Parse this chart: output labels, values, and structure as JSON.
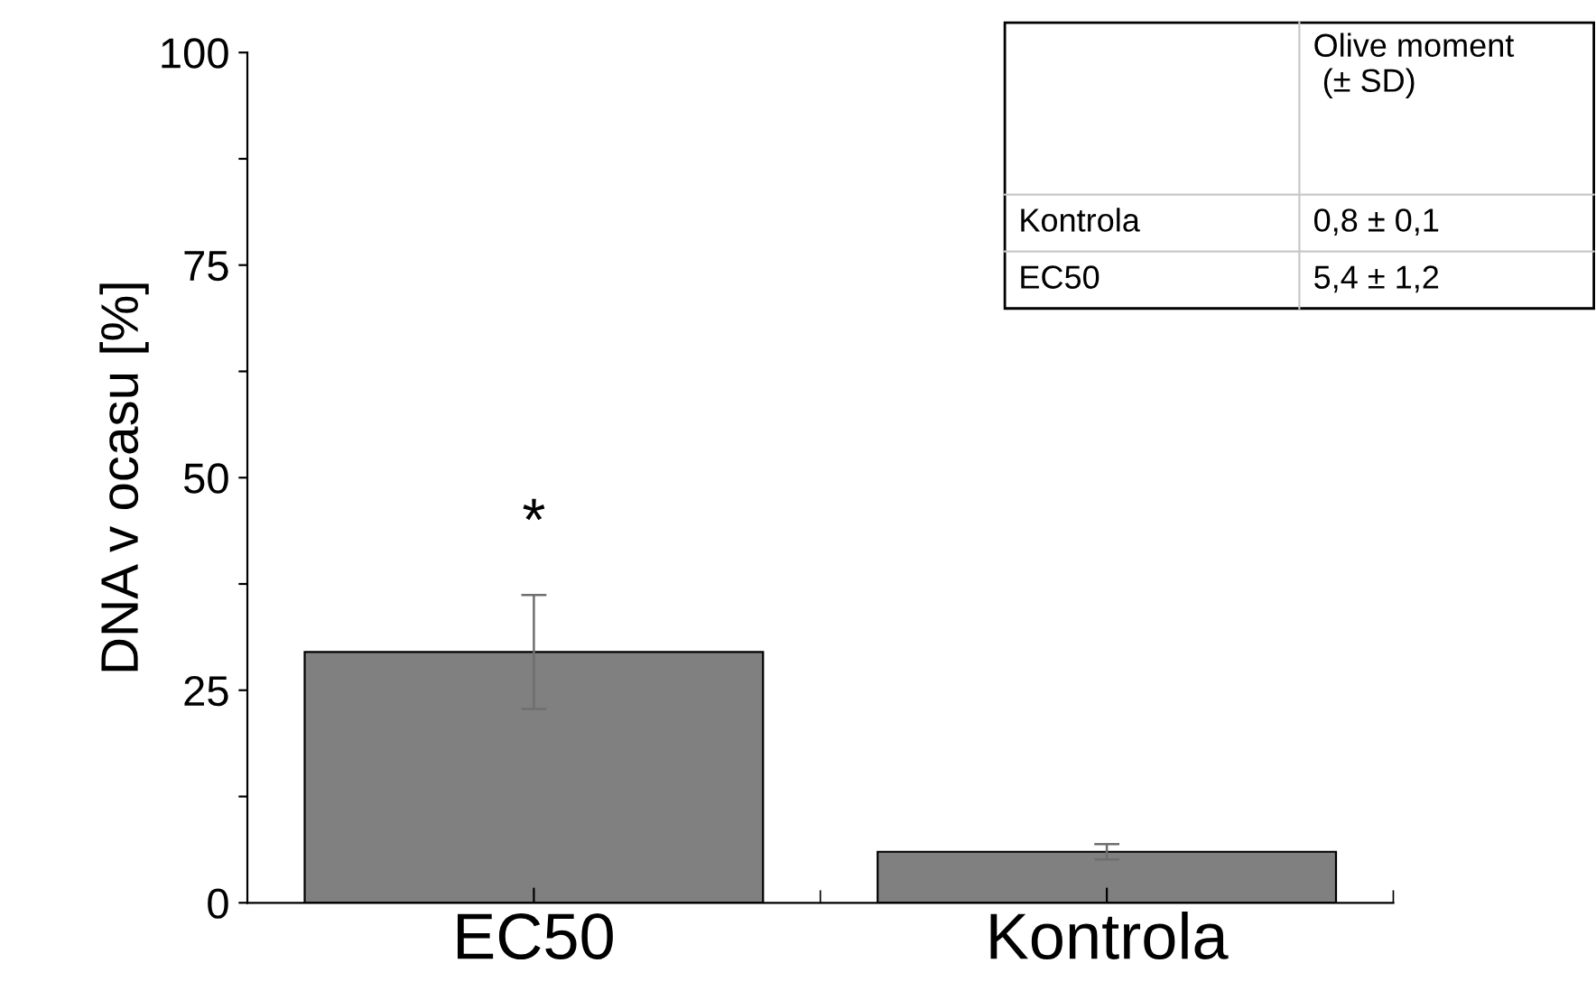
{
  "chart_data": {
    "type": "bar",
    "ylabel": "DNA v ocasu [%]",
    "categories": [
      "EC50",
      "Kontrola"
    ],
    "values": [
      29.5,
      6.0
    ],
    "errors": [
      6.7,
      0.9
    ],
    "color": "#808080",
    "ylim": [
      0,
      100
    ],
    "yticks": [
      0,
      {
        "value": 12.5,
        "label": null
      },
      25,
      {
        "value": 37.5,
        "label": null
      },
      50,
      {
        "value": 62.5,
        "label": null
      },
      75,
      {
        "value": 87.5,
        "label": null
      },
      100
    ],
    "grid": false,
    "legend": false,
    "annotations": [
      "*",
      "Olive moment\n (± SD)",
      "Kontrola",
      "0,8 ± 0,1",
      "EC50",
      "5,4 ± 1,2"
    ]
  }
}
